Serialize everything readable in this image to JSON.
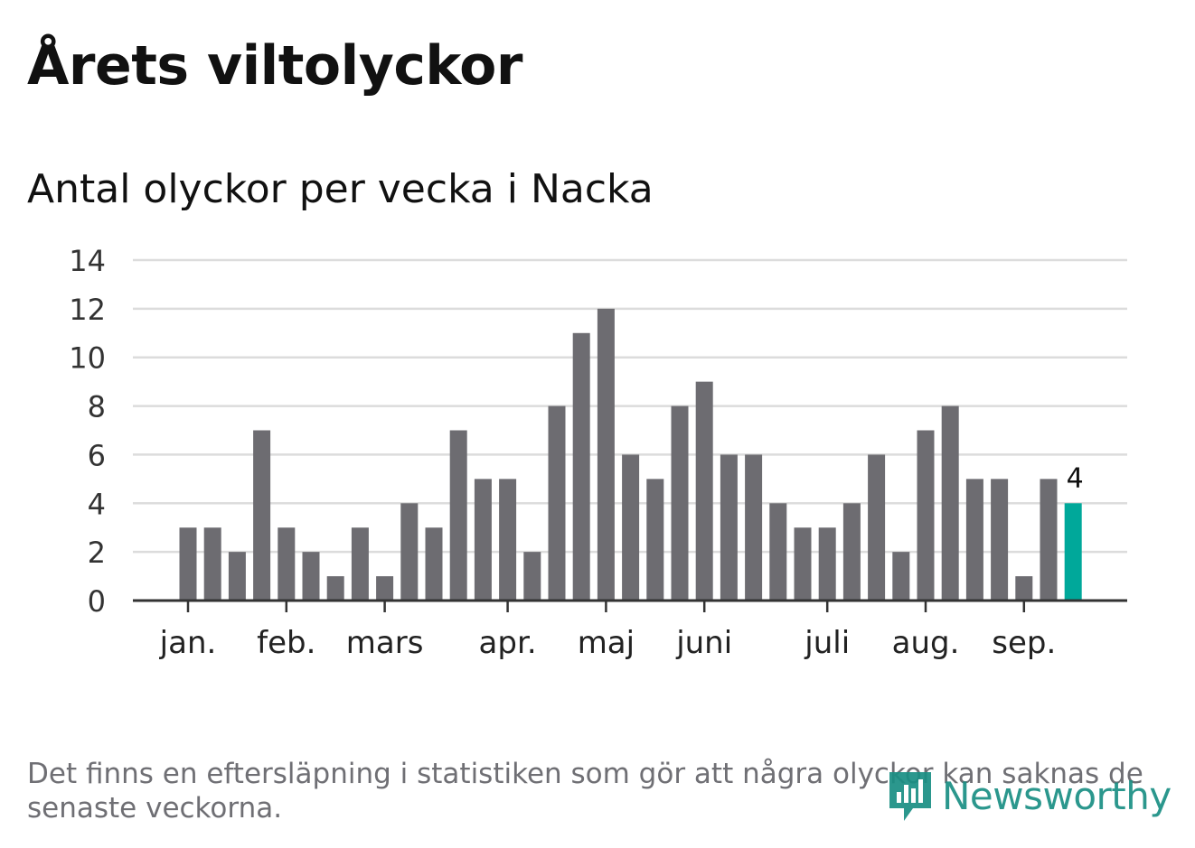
{
  "title": "Årets viltolyckor",
  "subtitle": "Antal olyckor per vecka i Nacka",
  "footnote": "Det finns en eftersläpning i statistiken som gör att några olyckor kan saknas de senaste veckorna.",
  "logo": {
    "text": "Newsworthy",
    "icon": "newsworthy-logo-icon"
  },
  "colors": {
    "bar": "#6d6c71",
    "highlight": "#00a89a",
    "grid": "#dcdcdc",
    "axis": "#333333"
  },
  "chart_data": {
    "type": "bar",
    "title": "Antal olyckor per vecka i Nacka",
    "xlabel": "",
    "ylabel": "",
    "ylim": [
      0,
      14
    ],
    "yticks": [
      0,
      2,
      4,
      6,
      8,
      10,
      12,
      14
    ],
    "grid": true,
    "month_labels": [
      {
        "label": "jan.",
        "week": 1
      },
      {
        "label": "feb.",
        "week": 5
      },
      {
        "label": "mars",
        "week": 9
      },
      {
        "label": "apr.",
        "week": 14
      },
      {
        "label": "maj",
        "week": 18
      },
      {
        "label": "juni",
        "week": 22
      },
      {
        "label": "juli",
        "week": 27
      },
      {
        "label": "aug.",
        "week": 31
      },
      {
        "label": "sep.",
        "week": 35
      }
    ],
    "weeks": [
      1,
      2,
      3,
      4,
      5,
      6,
      7,
      8,
      9,
      10,
      11,
      12,
      13,
      14,
      15,
      16,
      17,
      18,
      19,
      20,
      21,
      22,
      23,
      24,
      25,
      26,
      27,
      28,
      29,
      30,
      31,
      32,
      33,
      34,
      35,
      36,
      37
    ],
    "values": [
      3,
      3,
      2,
      7,
      3,
      2,
      1,
      3,
      1,
      4,
      3,
      7,
      5,
      5,
      2,
      8,
      11,
      12,
      6,
      5,
      8,
      9,
      6,
      6,
      4,
      3,
      3,
      4,
      6,
      2,
      7,
      8,
      5,
      5,
      1,
      5,
      4
    ],
    "highlight_index": 36,
    "highlight_label": "4"
  }
}
